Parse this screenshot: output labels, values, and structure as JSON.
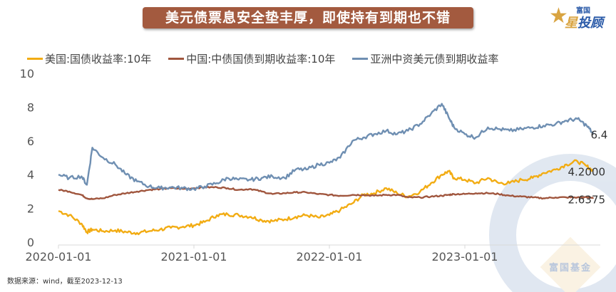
{
  "banner": {
    "title": "美元债票息安全垫丰厚，即使持有到期也不错"
  },
  "logo": {
    "small": "富国",
    "star": "星",
    "big": "投顾"
  },
  "watermark": {
    "text": "富国基金"
  },
  "source_note": "数据来源：wind，截至2023-12-13",
  "colors": {
    "us10y": "#f2ac13",
    "cn10y": "#a0563e",
    "asia_usd": "#6f8fb2",
    "banner": "#a35a3f"
  },
  "chart_data": {
    "type": "line",
    "title": "美元债票息安全垫丰厚，即使持有到期也不错",
    "xlabel": "",
    "ylabel": "",
    "ylim": [
      0,
      10
    ],
    "yticks": [
      "0",
      "2",
      "4",
      "6",
      "8",
      "10"
    ],
    "xlim": [
      "2020-01-01",
      "2023-12-13"
    ],
    "xticks": [
      "2020-01-01",
      "2021-01-01",
      "2022-01-01",
      "2023-01-01"
    ],
    "grid": false,
    "legend_position": "top",
    "x": [
      2020.0,
      2020.08,
      2020.17,
      2020.21,
      2020.25,
      2020.33,
      2020.42,
      2020.5,
      2020.58,
      2020.67,
      2020.75,
      2020.83,
      2020.92,
      2021.0,
      2021.08,
      2021.17,
      2021.25,
      2021.33,
      2021.42,
      2021.5,
      2021.58,
      2021.67,
      2021.75,
      2021.83,
      2021.92,
      2022.0,
      2022.08,
      2022.17,
      2022.25,
      2022.33,
      2022.42,
      2022.5,
      2022.58,
      2022.67,
      2022.75,
      2022.83,
      2022.88,
      2022.92,
      2023.0,
      2023.08,
      2023.17,
      2023.25,
      2023.33,
      2023.42,
      2023.5,
      2023.58,
      2023.67,
      2023.75,
      2023.83,
      2023.9,
      2023.95
    ],
    "series": [
      {
        "name": "美国:国债收益率:10年",
        "key": "us10y",
        "end_label": "4.2000",
        "values": [
          1.85,
          1.6,
          1.1,
          0.6,
          0.75,
          0.65,
          0.7,
          0.6,
          0.55,
          0.65,
          0.75,
          0.85,
          0.92,
          1.0,
          1.2,
          1.6,
          1.65,
          1.6,
          1.5,
          1.3,
          1.25,
          1.35,
          1.5,
          1.6,
          1.45,
          1.6,
          1.9,
          2.3,
          2.8,
          2.9,
          3.2,
          2.9,
          2.7,
          3.0,
          3.5,
          4.0,
          4.2,
          3.8,
          3.7,
          3.5,
          3.8,
          3.5,
          3.5,
          3.7,
          3.8,
          4.1,
          4.3,
          4.6,
          4.8,
          4.5,
          4.2
        ]
      },
      {
        "name": "中国:中债国债到期收益率:10年",
        "key": "cn10y",
        "end_label": "2.6375",
        "values": [
          3.1,
          3.0,
          2.8,
          2.6,
          2.55,
          2.6,
          2.8,
          2.9,
          3.0,
          3.1,
          3.15,
          3.2,
          3.15,
          3.2,
          3.25,
          3.25,
          3.2,
          3.1,
          3.15,
          3.0,
          2.85,
          2.9,
          2.95,
          2.95,
          2.85,
          2.8,
          2.75,
          2.8,
          2.8,
          2.75,
          2.8,
          2.8,
          2.65,
          2.65,
          2.7,
          2.75,
          2.8,
          2.85,
          2.85,
          2.9,
          2.9,
          2.85,
          2.75,
          2.7,
          2.65,
          2.6,
          2.65,
          2.65,
          2.65,
          2.65,
          2.6375
        ]
      },
      {
        "name": "亚洲中资美元债到期收益率",
        "key": "asia_usd",
        "end_label": "6.4",
        "values": [
          4.0,
          3.8,
          3.9,
          3.4,
          5.6,
          5.0,
          4.6,
          4.0,
          3.6,
          3.3,
          3.2,
          3.25,
          3.2,
          3.15,
          3.3,
          3.5,
          3.8,
          3.7,
          3.7,
          3.8,
          3.9,
          3.8,
          4.3,
          4.3,
          4.6,
          4.7,
          5.0,
          6.0,
          6.2,
          6.4,
          6.6,
          6.4,
          6.6,
          7.0,
          7.6,
          8.2,
          7.4,
          6.8,
          6.4,
          6.2,
          6.8,
          6.7,
          6.6,
          6.7,
          6.8,
          6.9,
          7.0,
          7.2,
          7.3,
          6.9,
          6.4
        ]
      }
    ]
  }
}
